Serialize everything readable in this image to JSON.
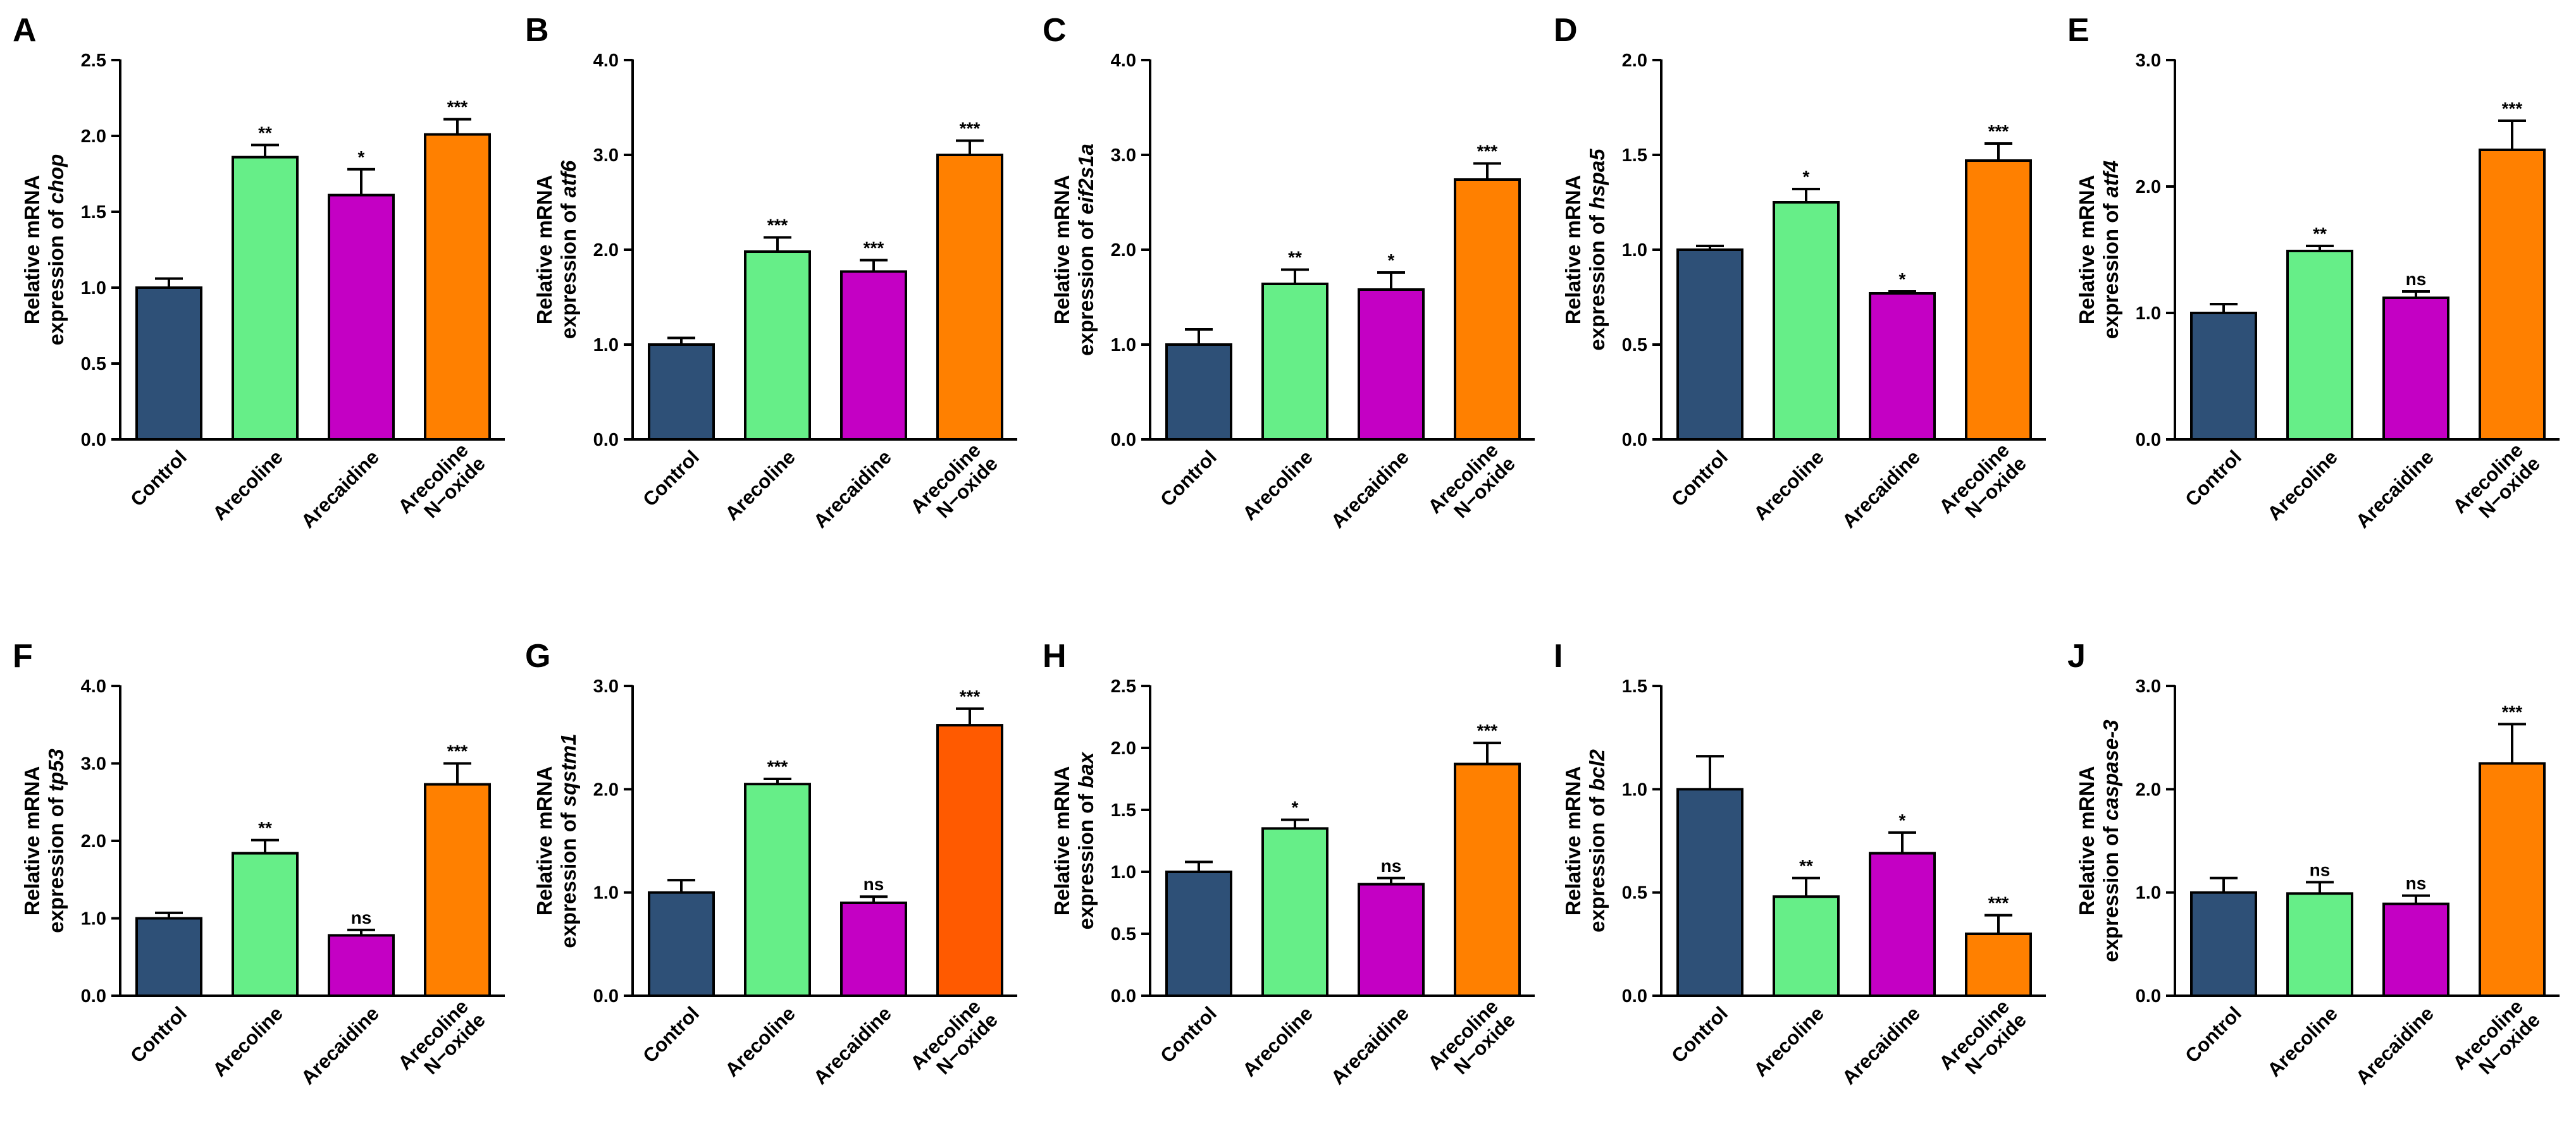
{
  "colors": {
    "Control": "#2e5077",
    "Arecoline": "#66ee88",
    "Arecaidine": "#c400c4",
    "Arecoline N-oxide": "#ff8000",
    "Arecoline N-oxide (G)": "#ff5a00"
  },
  "chart_data": [
    {
      "type": "bar",
      "panel": "A",
      "ylabel_prefix": "Relative mRNA",
      "ylabel_line2": "expression of ",
      "gene": "chop",
      "ylim": [
        0,
        2.5
      ],
      "yticks": [
        "0.0",
        "0.5",
        "1.0",
        "1.5",
        "2.0",
        "2.5"
      ],
      "categories": [
        "Control",
        "Arecoline",
        "Arecaidine",
        "Arecoline\nN−oxide"
      ],
      "values": [
        1.0,
        1.86,
        1.61,
        2.01
      ],
      "errors": [
        0.06,
        0.08,
        0.17,
        0.1
      ],
      "significance": [
        "",
        "**",
        "*",
        "***"
      ]
    },
    {
      "type": "bar",
      "panel": "B",
      "ylabel_prefix": "Relative mRNA",
      "ylabel_line2": "expression of ",
      "gene": "atf6",
      "ylim": [
        0,
        4.0
      ],
      "yticks": [
        "0.0",
        "1.0",
        "2.0",
        "3.0",
        "4.0"
      ],
      "categories": [
        "Control",
        "Arecoline",
        "Arecaidine",
        "Arecoline\nN−oxide"
      ],
      "values": [
        1.0,
        1.98,
        1.77,
        3.0
      ],
      "errors": [
        0.07,
        0.15,
        0.12,
        0.15
      ],
      "significance": [
        "",
        "***",
        "***",
        "***"
      ]
    },
    {
      "type": "bar",
      "panel": "C",
      "ylabel_prefix": "Relative mRNA",
      "ylabel_line2": "expression of ",
      "gene": "eif2s1a",
      "ylim": [
        0,
        4.0
      ],
      "yticks": [
        "0.0",
        "1.0",
        "2.0",
        "3.0",
        "4.0"
      ],
      "categories": [
        "Control",
        "Arecoline",
        "Arecaidine",
        "Arecoline\nN−oxide"
      ],
      "values": [
        1.0,
        1.64,
        1.58,
        2.74
      ],
      "errors": [
        0.16,
        0.15,
        0.18,
        0.17
      ],
      "significance": [
        "",
        "**",
        "*",
        "***"
      ]
    },
    {
      "type": "bar",
      "panel": "D",
      "ylabel_prefix": "Relative mRNA",
      "ylabel_line2": "expression of ",
      "gene": "hspa5",
      "ylim": [
        0,
        2.0
      ],
      "yticks": [
        "0.0",
        "0.5",
        "1.0",
        "1.5",
        "2.0"
      ],
      "categories": [
        "Control",
        "Arecoline",
        "Arecaidine",
        "Arecoline\nN−oxide"
      ],
      "values": [
        1.0,
        1.25,
        0.77,
        1.47
      ],
      "errors": [
        0.02,
        0.07,
        0.01,
        0.09
      ],
      "significance": [
        "",
        "*",
        "*",
        "***"
      ]
    },
    {
      "type": "bar",
      "panel": "E",
      "ylabel_prefix": "Relative mRNA",
      "ylabel_line2": "expression of ",
      "gene": "atf4",
      "ylim": [
        0,
        3.0
      ],
      "yticks": [
        "0.0",
        "1.0",
        "2.0",
        "3.0"
      ],
      "categories": [
        "Control",
        "Arecoline",
        "Arecaidine",
        "Arecoline\nN−oxide"
      ],
      "values": [
        1.0,
        1.49,
        1.12,
        2.29
      ],
      "errors": [
        0.07,
        0.04,
        0.05,
        0.23
      ],
      "significance": [
        "",
        "**",
        "ns",
        "***"
      ]
    },
    {
      "type": "bar",
      "panel": "F",
      "ylabel_prefix": "Relative mRNA",
      "ylabel_line2": "expression of ",
      "gene": "tp53",
      "ylim": [
        0,
        4.0
      ],
      "yticks": [
        "0.0",
        "1.0",
        "2.0",
        "3.0",
        "4.0"
      ],
      "categories": [
        "Control",
        "Arecoline",
        "Arecaidine",
        "Arecoline\nN−oxide"
      ],
      "values": [
        1.0,
        1.84,
        0.78,
        2.73
      ],
      "errors": [
        0.07,
        0.17,
        0.07,
        0.27
      ],
      "significance": [
        "",
        "**",
        "ns",
        "***"
      ]
    },
    {
      "type": "bar",
      "panel": "G",
      "ylabel_prefix": "Relative mRNA",
      "ylabel_line2": "expression of ",
      "gene": "sqstm1",
      "ylim": [
        0,
        3.0
      ],
      "yticks": [
        "0.0",
        "1.0",
        "2.0",
        "3.0"
      ],
      "categories": [
        "Control",
        "Arecoline",
        "Arecaidine",
        "Arecoline\nN−oxide"
      ],
      "values": [
        1.0,
        2.05,
        0.9,
        2.62
      ],
      "errors": [
        0.12,
        0.05,
        0.06,
        0.16
      ],
      "significance": [
        "",
        "***",
        "ns",
        "***"
      ]
    },
    {
      "type": "bar",
      "panel": "H",
      "ylabel_prefix": "Relative mRNA",
      "ylabel_line2": "expression of ",
      "gene": "bax",
      "ylim": [
        0,
        2.5
      ],
      "yticks": [
        "0.0",
        "0.5",
        "1.0",
        "1.5",
        "2.0",
        "2.5"
      ],
      "categories": [
        "Control",
        "Arecoline",
        "Arecaidine",
        "Arecoline\nN−oxide"
      ],
      "values": [
        1.0,
        1.35,
        0.9,
        1.87
      ],
      "errors": [
        0.08,
        0.07,
        0.05,
        0.17
      ],
      "significance": [
        "",
        "*",
        "ns",
        "***"
      ]
    },
    {
      "type": "bar",
      "panel": "I",
      "ylabel_prefix": "Relative mRNA",
      "ylabel_line2": "expression of ",
      "gene": "bcl2",
      "ylim": [
        0,
        1.5
      ],
      "yticks": [
        "0.0",
        "0.5",
        "1.0",
        "1.5"
      ],
      "categories": [
        "Control",
        "Arecoline",
        "Arecaidine",
        "Arecoline\nN−oxide"
      ],
      "values": [
        1.0,
        0.48,
        0.69,
        0.3
      ],
      "errors": [
        0.16,
        0.09,
        0.1,
        0.09
      ],
      "significance": [
        "",
        "**",
        "*",
        "***"
      ]
    },
    {
      "type": "bar",
      "panel": "J",
      "ylabel_prefix": "Relative mRNA",
      "ylabel_line2": "expression of ",
      "gene": "caspase-3",
      "ylim": [
        0,
        3.0
      ],
      "yticks": [
        "0.0",
        "1.0",
        "2.0",
        "3.0"
      ],
      "categories": [
        "Control",
        "Arecoline",
        "Arecaidine",
        "Arecoline\nN−oxide"
      ],
      "values": [
        1.0,
        0.99,
        0.89,
        2.25
      ],
      "errors": [
        0.14,
        0.11,
        0.08,
        0.38
      ],
      "significance": [
        "",
        "ns",
        "ns",
        "***"
      ]
    }
  ]
}
